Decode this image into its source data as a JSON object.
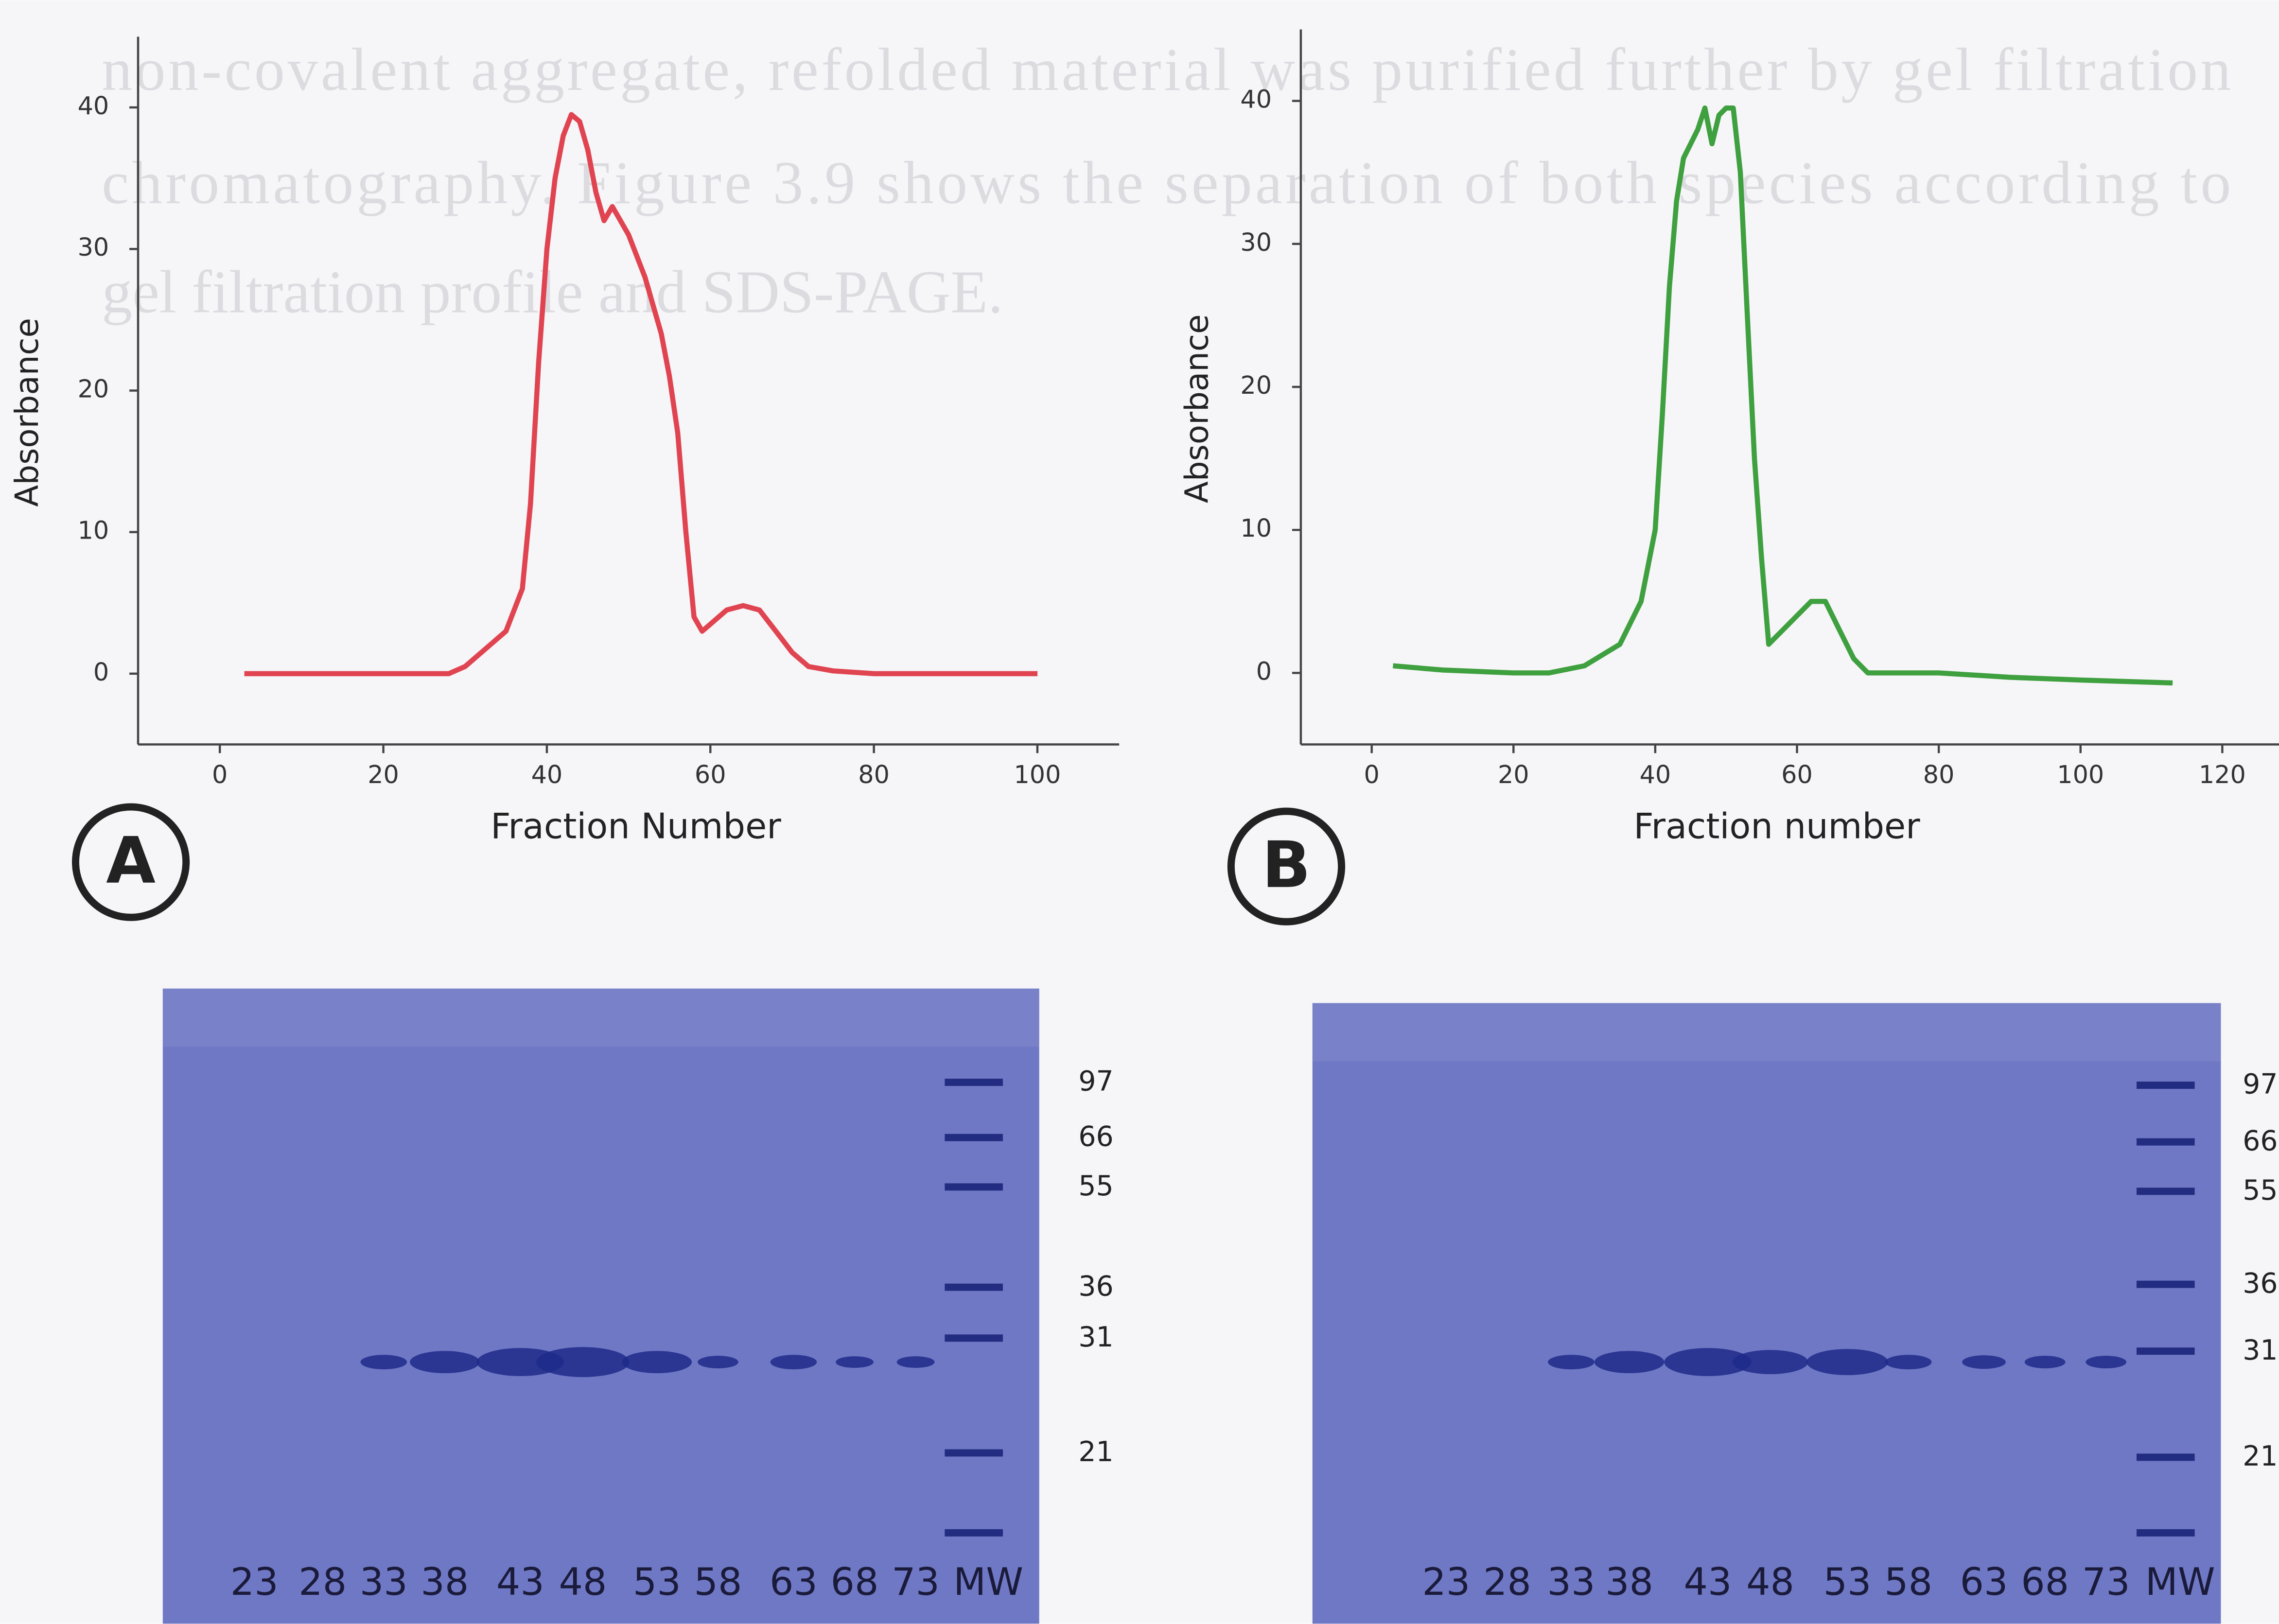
{
  "background_text": [
    "non-covalent aggregate, refolded material was purified further by gel filtration",
    "chromatography. Figure 3.9 shows the separation of both species according to",
    "gel filtration profile and SDS-PAGE."
  ],
  "chart_data": [
    {
      "type": "line",
      "annotations": [
        "A"
      ],
      "xlabel": "Fraction Number",
      "ylabel": "Absorbance",
      "color": "#e04450",
      "x": [
        3,
        10,
        20,
        28,
        30,
        35,
        37,
        38,
        39,
        40,
        41,
        42,
        43,
        44,
        45,
        46,
        47,
        48,
        49,
        50,
        52,
        54,
        55,
        56,
        57,
        58,
        59,
        60,
        62,
        64,
        66,
        68,
        70,
        72,
        75,
        80,
        90,
        100
      ],
      "values": [
        0,
        0,
        0,
        0,
        0.5,
        3,
        6,
        12,
        22,
        30,
        35,
        38,
        39.5,
        39,
        37,
        34,
        32,
        33,
        32,
        31,
        28,
        24,
        21,
        17,
        10,
        4,
        3,
        3.5,
        4.5,
        4.8,
        4.5,
        3,
        1.5,
        0.5,
        0.2,
        0,
        0,
        0
      ],
      "xlim": [
        -10,
        110
      ],
      "ylim": [
        -5,
        45
      ],
      "xticks": [
        0,
        20,
        40,
        60,
        80,
        100
      ],
      "yticks": [
        0,
        10,
        20,
        30,
        40
      ]
    },
    {
      "type": "line",
      "annotations": [
        "B"
      ],
      "xlabel": "Fraction number",
      "ylabel": "Absorbance",
      "color": "#3fa03f",
      "x": [
        3,
        10,
        20,
        25,
        30,
        35,
        38,
        40,
        41,
        42,
        43,
        44,
        46,
        47,
        48,
        49,
        50,
        51,
        52,
        53,
        54,
        55,
        56,
        57,
        58,
        60,
        62,
        64,
        66,
        68,
        70,
        80,
        90,
        100,
        113
      ],
      "values": [
        0.5,
        0.2,
        0,
        0,
        0.5,
        2,
        5,
        10,
        18,
        27,
        33,
        36,
        38,
        39.5,
        37,
        39,
        39.5,
        39.5,
        35,
        25,
        15,
        8,
        2,
        2.5,
        3,
        4,
        5,
        5,
        3,
        1,
        0,
        0,
        -0.3,
        -0.5,
        -0.7
      ],
      "xlim": [
        -10,
        128
      ],
      "ylim": [
        -5,
        45
      ],
      "xticks": [
        0,
        20,
        40,
        60,
        80,
        100,
        120
      ],
      "yticks": [
        0,
        10,
        20,
        30,
        40
      ]
    }
  ],
  "gels": [
    {
      "lanes": [
        "23",
        "28",
        "33",
        "38",
        "43",
        "48",
        "53",
        "58",
        "63",
        "68",
        "73",
        "MW"
      ],
      "markers": [
        97,
        66,
        55,
        36,
        31,
        21
      ]
    },
    {
      "lanes": [
        "23",
        "28",
        "33",
        "38",
        "43",
        "48",
        "53",
        "58",
        "63",
        "68",
        "73",
        "MW"
      ],
      "markers": [
        97,
        66,
        55,
        36,
        31,
        21
      ]
    }
  ]
}
